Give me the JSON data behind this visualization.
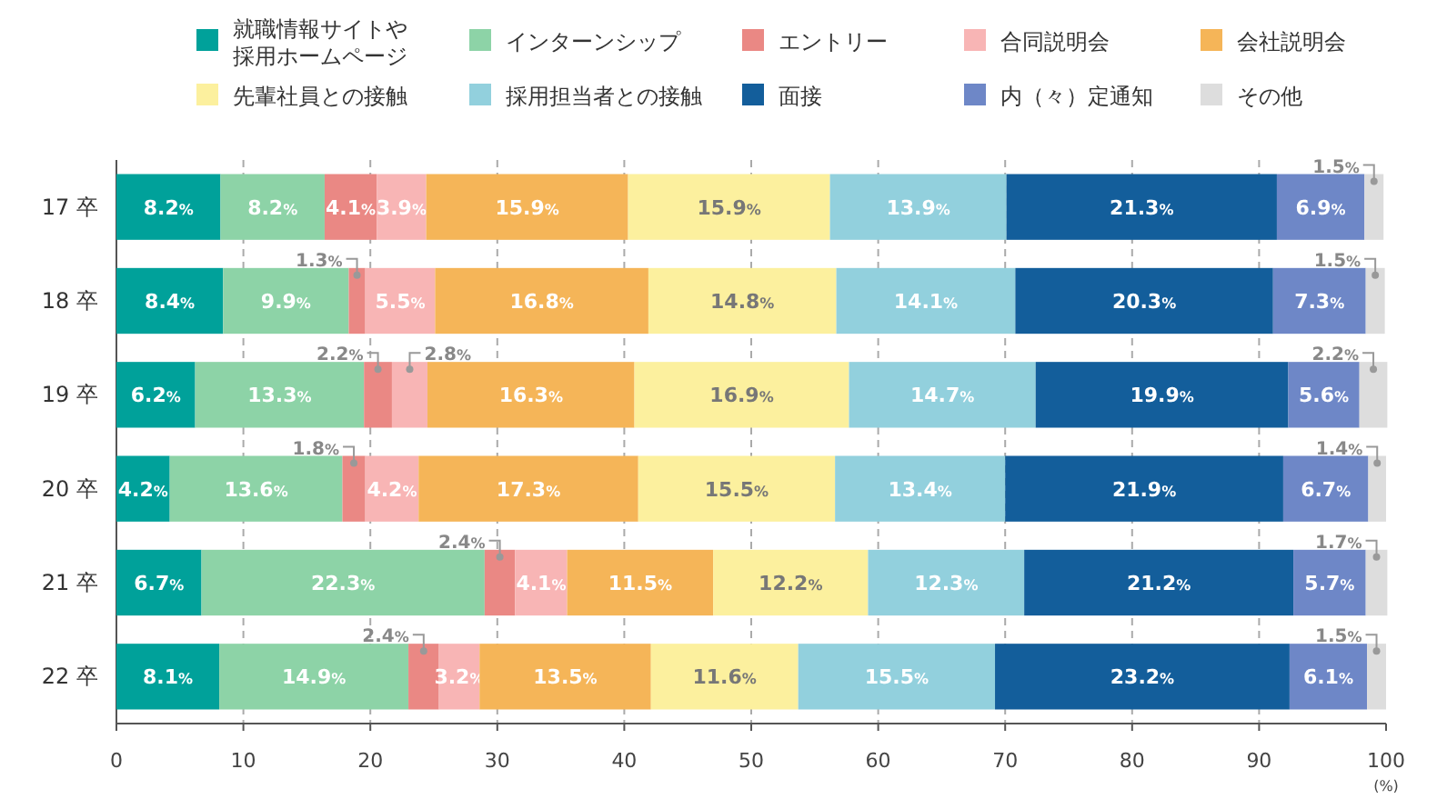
{
  "chart_data": {
    "type": "bar",
    "orientation": "horizontal",
    "stacked": true,
    "categories": [
      "17 卒",
      "18 卒",
      "19 卒",
      "20 卒",
      "21 卒",
      "22 卒"
    ],
    "series": [
      {
        "name": "就職情報サイトや採用ホームページ",
        "color": "#00a19a",
        "values": [
          8.2,
          8.4,
          6.2,
          4.2,
          6.7,
          8.1
        ],
        "value_labels": [
          "8.2%",
          "8.4%",
          "6.2%",
          "4.2%",
          "6.7%",
          "8.1%"
        ]
      },
      {
        "name": "インターンシップ",
        "color": "#8dd3a7",
        "values": [
          8.2,
          9.9,
          13.3,
          13.6,
          22.3,
          14.9
        ],
        "value_labels": [
          "8.2%",
          "9.9%",
          "13.3%",
          "13.6%",
          "22.3%",
          "14.9%"
        ]
      },
      {
        "name": "エントリー",
        "color": "#ea8884",
        "values": [
          4.1,
          1.3,
          2.2,
          1.8,
          2.4,
          2.4
        ],
        "value_labels": [
          "4.1%",
          "1.3%",
          "2.2%",
          "1.8%",
          "2.4%",
          "2.4%"
        ]
      },
      {
        "name": "合同説明会",
        "color": "#f8b5b5",
        "values": [
          3.9,
          5.5,
          2.8,
          4.2,
          4.1,
          3.2
        ],
        "value_labels": [
          "3.9%",
          "5.5%",
          "2.8%",
          "4.2%",
          "4.1%",
          "3.2%"
        ]
      },
      {
        "name": "会社説明会",
        "color": "#f5b558",
        "values": [
          15.9,
          16.8,
          16.3,
          17.3,
          11.5,
          13.5
        ],
        "value_labels": [
          "15.9%",
          "16.8%",
          "16.3%",
          "17.3%",
          "11.5%",
          "13.5%"
        ]
      },
      {
        "name": "先輩社員との接触",
        "color": "#fcf09e",
        "values": [
          15.9,
          14.8,
          16.9,
          15.5,
          12.2,
          11.6
        ],
        "value_labels": [
          "15.9%",
          "14.8%",
          "16.9%",
          "15.5%",
          "12.2%",
          "11.6%"
        ]
      },
      {
        "name": "採用担当者との接触",
        "color": "#92d0dd",
        "values": [
          13.9,
          14.1,
          14.7,
          13.4,
          12.3,
          15.5
        ],
        "value_labels": [
          "13.9%",
          "14.1%",
          "14.7%",
          "13.4%",
          "12.3%",
          "15.5%"
        ]
      },
      {
        "name": "面接",
        "color": "#135e9b",
        "values": [
          21.3,
          20.3,
          19.9,
          21.9,
          21.2,
          23.2
        ],
        "value_labels": [
          "21.3%",
          "20.3%",
          "19.9%",
          "21.9%",
          "21.2%",
          "23.2%"
        ]
      },
      {
        "name": "内（々）定通知",
        "color": "#6e87c7",
        "values": [
          6.9,
          7.3,
          5.6,
          6.7,
          5.7,
          6.1
        ],
        "value_labels": [
          "6.9%",
          "7.3%",
          "5.6%",
          "6.7%",
          "5.7%",
          "6.1%"
        ]
      },
      {
        "name": "その他",
        "color": "#dddddd",
        "values": [
          1.5,
          1.5,
          2.2,
          1.4,
          1.7,
          1.5
        ],
        "value_labels": [
          "1.5%",
          "1.5%",
          "2.2%",
          "1.4%",
          "1.7%",
          "1.5%"
        ]
      }
    ],
    "xlim": [
      0,
      100
    ],
    "xticks": [
      0,
      10,
      20,
      30,
      40,
      50,
      60,
      70,
      80,
      90,
      100
    ],
    "xlabel": "(%)",
    "grid": "x",
    "legend": "top"
  }
}
